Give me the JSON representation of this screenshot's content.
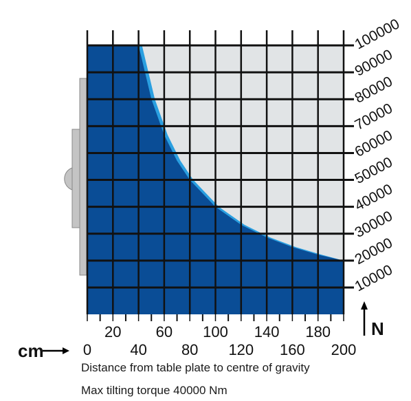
{
  "chart_data": {
    "type": "area",
    "x_unit": "cm",
    "y_unit": "N",
    "xlabel": "Distance from table plate to centre of gravity",
    "subtitle": "Max tilting torque 40000 Nm",
    "xlim": [
      0,
      200
    ],
    "ylim": [
      0,
      100000
    ],
    "x_ticks_upper": [
      "20",
      "60",
      "100",
      "140",
      "180"
    ],
    "x_ticks_lower": [
      "0",
      "40",
      "80",
      "120",
      "160",
      "200"
    ],
    "y_ticks": [
      "10000",
      "20000",
      "30000",
      "40000",
      "50000",
      "60000",
      "70000",
      "80000",
      "90000",
      "100000"
    ],
    "series": [
      {
        "kind": "max-load-curve",
        "x": [
          40,
          50,
          60,
          70,
          80,
          100,
          120,
          140,
          160,
          180,
          200
        ],
        "y": [
          100000,
          80000,
          66700,
          57100,
          50000,
          40000,
          33300,
          28600,
          25000,
          22200,
          20000
        ]
      }
    ],
    "colors": {
      "area": "#0a4d96",
      "edge": "#2a9fe0",
      "background": "#e1e4e6",
      "grid": "#111111",
      "fixture": "#c4c4c4"
    },
    "grid": true
  }
}
